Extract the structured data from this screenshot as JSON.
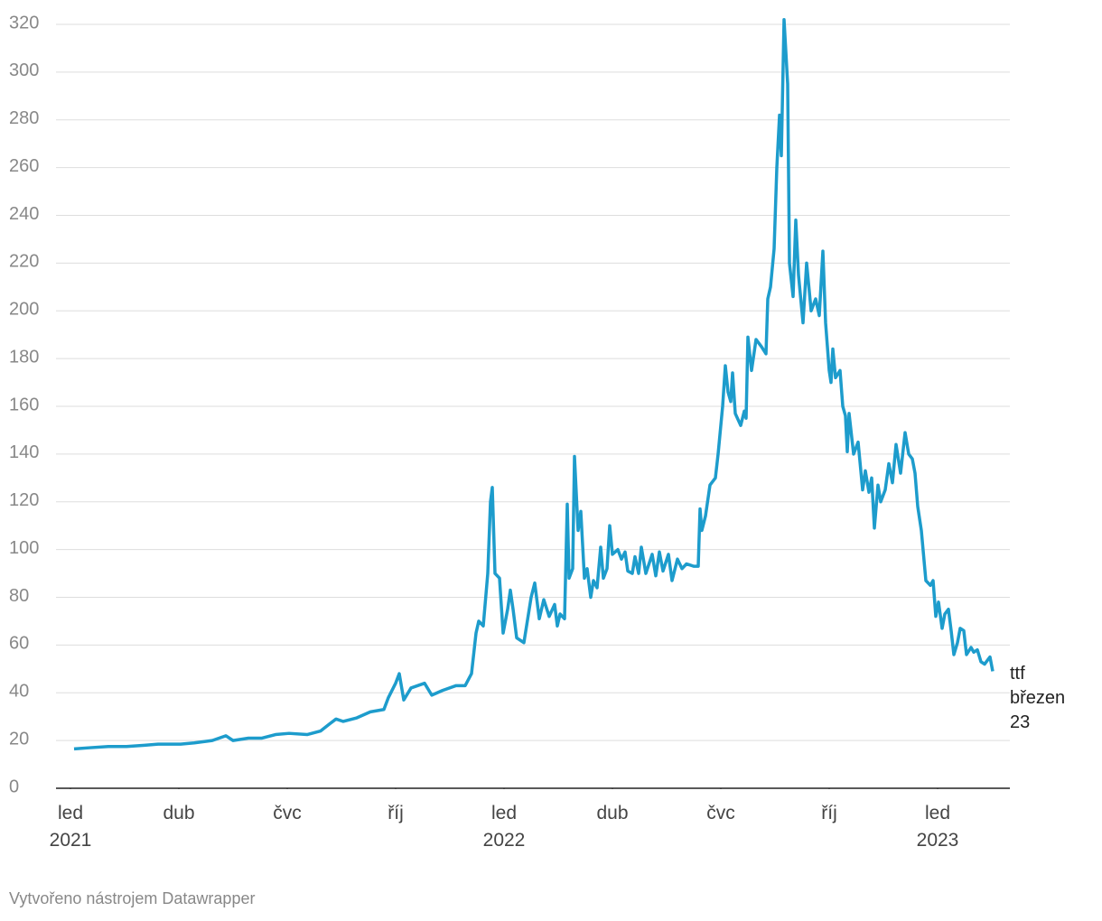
{
  "chart_data": {
    "type": "line",
    "x": [
      0.1,
      0.55,
      1.05,
      1.55,
      2.05,
      2.425,
      3.05,
      3.425,
      3.925,
      4.3,
      4.5,
      4.925,
      5.3,
      5.675,
      6.05,
      6.55,
      6.925,
      7.175,
      7.35,
      7.55,
      7.925,
      8.3,
      8.675,
      8.8,
      9,
      9.1,
      9.225,
      9.425,
      9.8,
      10,
      10.3,
      10.675,
      10.925,
      11.1,
      11.225,
      11.3,
      11.425,
      11.55,
      11.625,
      11.675,
      11.75,
      11.875,
      11.975,
      12.1,
      12.175,
      12.25,
      12.35,
      12.55,
      12.75,
      12.85,
      12.975,
      13.1,
      13.25,
      13.4,
      13.475,
      13.55,
      13.675,
      13.75,
      13.8,
      13.9,
      13.95,
      14.05,
      14.125,
      14.225,
      14.3,
      14.4,
      14.475,
      14.575,
      14.675,
      14.75,
      14.85,
      14.925,
      15,
      15.15,
      15.25,
      15.35,
      15.425,
      15.55,
      15.625,
      15.725,
      15.8,
      15.925,
      16.1,
      16.2,
      16.3,
      16.4,
      16.55,
      16.65,
      16.8,
      16.925,
      17.05,
      17.25,
      17.375,
      17.425,
      17.475,
      17.575,
      17.7,
      17.85,
      17.925,
      18.05,
      18.125,
      18.2,
      18.275,
      18.325,
      18.4,
      18.55,
      18.65,
      18.7,
      18.75,
      18.85,
      18.975,
      19.125,
      19.25,
      19.3,
      19.375,
      19.475,
      19.55,
      19.625,
      19.675,
      19.75,
      19.85,
      19.9,
      20,
      20.075,
      20.15,
      20.275,
      20.375,
      20.5,
      20.625,
      20.725,
      20.825,
      20.9,
      21,
      21.05,
      21.1,
      21.175,
      21.3,
      21.375,
      21.45,
      21.5,
      21.55,
      21.675,
      21.8,
      21.925,
      22,
      22.1,
      22.175,
      22.25,
      22.35,
      22.425,
      22.55,
      22.65,
      22.75,
      22.85,
      22.975,
      23.1,
      23.2,
      23.3,
      23.375,
      23.45,
      23.55,
      23.675,
      23.8,
      23.875,
      23.95,
      24.025,
      24.125,
      24.2,
      24.3,
      24.375,
      24.45,
      24.55,
      24.625,
      24.725,
      24.8,
      24.925,
      25,
      25.1,
      25.2,
      25.3,
      25.4,
      25.45,
      25.525
    ],
    "series": [
      {
        "name": "ttf březen 23",
        "color": "#1d9ccc",
        "values": [
          16.5,
          17,
          17.5,
          17.5,
          18,
          18.5,
          18.5,
          19,
          20,
          22,
          20,
          21,
          21,
          22.5,
          23,
          22.5,
          24,
          27,
          29,
          28,
          29.5,
          32,
          33,
          38,
          44,
          48,
          37,
          42,
          44,
          39,
          41,
          43,
          43,
          48,
          65,
          70,
          68,
          90,
          120,
          126,
          90,
          88,
          65,
          75,
          83,
          75,
          63,
          61,
          80,
          86,
          71,
          79,
          72,
          77,
          68,
          73,
          71,
          119,
          88,
          92,
          139,
          108,
          116,
          88,
          92,
          80,
          87,
          84,
          101,
          88,
          92,
          110,
          98,
          100,
          96,
          99,
          91,
          90,
          97,
          90,
          101,
          90,
          98,
          89,
          99,
          91,
          98,
          87,
          96,
          92,
          94,
          93,
          93,
          117,
          108,
          114,
          127,
          130,
          140,
          160,
          177,
          166,
          162,
          174,
          157,
          152,
          158,
          155,
          189,
          175,
          188,
          185,
          182,
          205,
          210,
          226,
          260,
          282,
          265,
          322,
          295,
          220,
          206,
          238,
          215,
          195,
          220,
          200,
          205,
          198,
          225,
          195,
          175,
          170,
          184,
          172,
          175,
          160,
          156,
          141,
          157,
          140,
          145,
          125,
          133,
          124,
          130,
          109,
          127,
          120,
          125,
          136,
          128,
          144,
          132,
          149,
          140,
          138,
          132,
          118,
          108,
          87,
          85,
          87,
          72,
          78,
          67,
          73,
          75,
          66,
          56,
          61,
          67,
          66,
          56,
          59,
          57,
          58,
          53,
          52,
          54,
          55,
          49
        ]
      }
    ],
    "xlim": [
      -0.325,
      26
    ],
    "xticks": [
      {
        "value": 0,
        "label": "led"
      },
      {
        "value": 3,
        "label": "dub"
      },
      {
        "value": 6,
        "label": "čvc"
      },
      {
        "value": 9,
        "label": "říj"
      },
      {
        "value": 12,
        "label": "led"
      },
      {
        "value": 15,
        "label": "dub"
      },
      {
        "value": 18,
        "label": "čvc"
      },
      {
        "value": 21,
        "label": "říj"
      },
      {
        "value": 24,
        "label": "led"
      }
    ],
    "xtick_years": [
      {
        "value": 0,
        "label": "2021"
      },
      {
        "value": 12,
        "label": "2022"
      },
      {
        "value": 24,
        "label": "2023"
      }
    ],
    "ylim": [
      0,
      320
    ],
    "yticks": [
      0,
      20,
      40,
      60,
      80,
      100,
      120,
      140,
      160,
      180,
      200,
      220,
      240,
      260,
      280,
      300,
      320
    ],
    "grid": true,
    "footer": "Vytvořeno nástrojem Datawrapper"
  }
}
